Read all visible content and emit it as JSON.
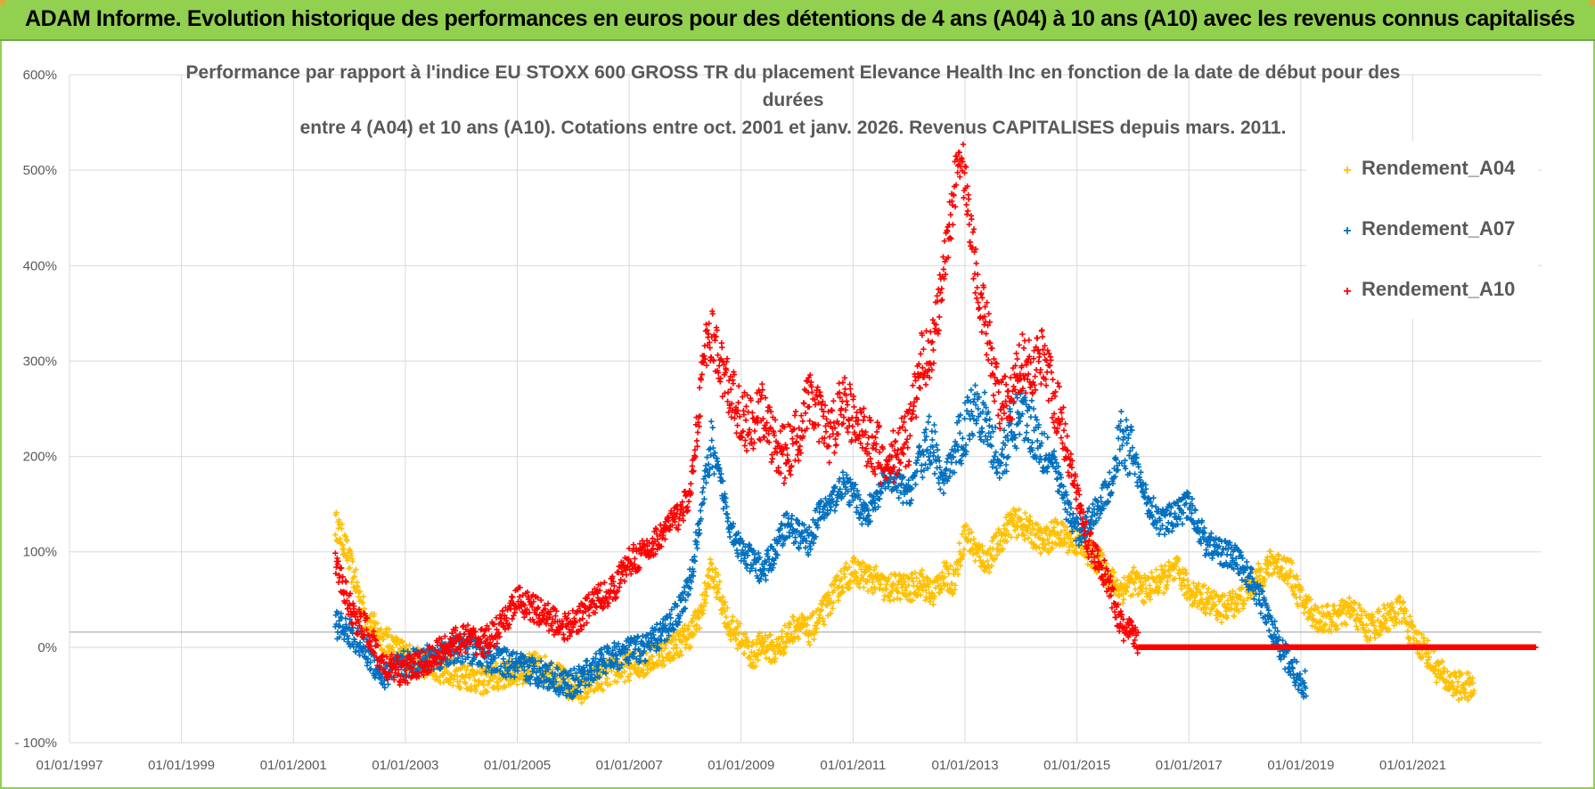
{
  "header": {
    "banner_title": "ADAM Informe. Evolution historique des performances en euros pour des détentions de 4 ans (A04) à 10 ans (A10) avec les revenus connus capitalisés"
  },
  "chart_data": {
    "type": "scatter",
    "title_line1": "Performance par rapport à l'indice EU STOXX 600 GROSS TR  du placement Elevance Health Inc en fonction de la date de début pour des durées",
    "title_line2": "entre 4 (A04) et 10 ans (A10).  Cotations entre oct. 2001 et janv. 2026.  Revenus CAPITALISES  depuis mars. 2011.",
    "xlabel": "",
    "ylabel": "",
    "x_ticks": [
      "01/01/1997",
      "01/01/1999",
      "01/01/2001",
      "01/01/2003",
      "01/01/2005",
      "01/01/2007",
      "01/01/2009",
      "01/01/2011",
      "01/01/2013",
      "01/01/2015",
      "01/01/2017",
      "01/01/2019",
      "01/01/2021"
    ],
    "xlim": [
      1997.0,
      2023.3
    ],
    "y_ticks": [
      "600%",
      "500%",
      "400%",
      "300%",
      "200%",
      "100%",
      "0%",
      "- 100%"
    ],
    "ylim": [
      -100,
      600
    ],
    "legend_position": "top-right",
    "series": [
      {
        "name": "Rendement_A04",
        "color": "#ffc000",
        "points": [
          [
            2001.75,
            130
          ],
          [
            2001.9,
            110
          ],
          [
            2002.1,
            70
          ],
          [
            2002.3,
            30
          ],
          [
            2002.6,
            10
          ],
          [
            2002.9,
            -5
          ],
          [
            2003.2,
            -15
          ],
          [
            2003.5,
            -20
          ],
          [
            2003.8,
            -25
          ],
          [
            2004.1,
            -30
          ],
          [
            2004.4,
            -35
          ],
          [
            2004.7,
            -30
          ],
          [
            2005.0,
            -25
          ],
          [
            2005.3,
            -20
          ],
          [
            2005.6,
            -25
          ],
          [
            2005.9,
            -40
          ],
          [
            2006.1,
            -45
          ],
          [
            2006.4,
            -35
          ],
          [
            2006.7,
            -25
          ],
          [
            2007.0,
            -20
          ],
          [
            2007.3,
            -15
          ],
          [
            2007.6,
            -5
          ],
          [
            2007.9,
            5
          ],
          [
            2008.1,
            15
          ],
          [
            2008.3,
            40
          ],
          [
            2008.45,
            80
          ],
          [
            2008.6,
            60
          ],
          [
            2008.8,
            20
          ],
          [
            2009.0,
            10
          ],
          [
            2009.2,
            -10
          ],
          [
            2009.4,
            5
          ],
          [
            2009.6,
            -5
          ],
          [
            2009.8,
            10
          ],
          [
            2010.0,
            25
          ],
          [
            2010.2,
            15
          ],
          [
            2010.4,
            30
          ],
          [
            2010.6,
            50
          ],
          [
            2010.8,
            70
          ],
          [
            2011.0,
            80
          ],
          [
            2011.2,
            75
          ],
          [
            2011.4,
            70
          ],
          [
            2011.6,
            60
          ],
          [
            2011.8,
            65
          ],
          [
            2012.0,
            60
          ],
          [
            2012.2,
            70
          ],
          [
            2012.4,
            55
          ],
          [
            2012.6,
            75
          ],
          [
            2012.8,
            70
          ],
          [
            2013.0,
            120
          ],
          [
            2013.2,
            100
          ],
          [
            2013.4,
            90
          ],
          [
            2013.6,
            110
          ],
          [
            2013.8,
            130
          ],
          [
            2014.0,
            130
          ],
          [
            2014.2,
            120
          ],
          [
            2014.4,
            110
          ],
          [
            2014.6,
            120
          ],
          [
            2014.8,
            115
          ],
          [
            2015.0,
            110
          ],
          [
            2015.2,
            100
          ],
          [
            2015.4,
            90
          ],
          [
            2015.6,
            70
          ],
          [
            2015.8,
            60
          ],
          [
            2016.0,
            70
          ],
          [
            2016.2,
            60
          ],
          [
            2016.5,
            70
          ],
          [
            2016.8,
            80
          ],
          [
            2017.0,
            60
          ],
          [
            2017.3,
            50
          ],
          [
            2017.6,
            40
          ],
          [
            2017.9,
            50
          ],
          [
            2018.2,
            70
          ],
          [
            2018.5,
            90
          ],
          [
            2018.8,
            80
          ],
          [
            2019.0,
            50
          ],
          [
            2019.3,
            30
          ],
          [
            2019.6,
            30
          ],
          [
            2019.9,
            40
          ],
          [
            2020.2,
            20
          ],
          [
            2020.5,
            30
          ],
          [
            2020.8,
            40
          ],
          [
            2021.0,
            10
          ],
          [
            2021.2,
            0
          ],
          [
            2021.4,
            -20
          ],
          [
            2021.6,
            -35
          ],
          [
            2021.8,
            -40
          ],
          [
            2022.0,
            -42
          ],
          [
            2022.1,
            -43
          ]
        ]
      },
      {
        "name": "Rendement_A07",
        "color": "#0070c0",
        "points": [
          [
            2001.75,
            25
          ],
          [
            2001.9,
            20
          ],
          [
            2002.1,
            10
          ],
          [
            2002.3,
            -5
          ],
          [
            2002.6,
            -30
          ],
          [
            2002.9,
            -20
          ],
          [
            2003.2,
            -15
          ],
          [
            2003.5,
            -10
          ],
          [
            2003.8,
            -5
          ],
          [
            2004.1,
            0
          ],
          [
            2004.4,
            -10
          ],
          [
            2004.7,
            -15
          ],
          [
            2005.0,
            -20
          ],
          [
            2005.3,
            -25
          ],
          [
            2005.6,
            -30
          ],
          [
            2005.9,
            -40
          ],
          [
            2006.1,
            -35
          ],
          [
            2006.4,
            -20
          ],
          [
            2006.7,
            -10
          ],
          [
            2007.0,
            -5
          ],
          [
            2007.3,
            0
          ],
          [
            2007.6,
            15
          ],
          [
            2007.9,
            40
          ],
          [
            2008.1,
            70
          ],
          [
            2008.3,
            150
          ],
          [
            2008.45,
            210
          ],
          [
            2008.6,
            180
          ],
          [
            2008.8,
            130
          ],
          [
            2009.0,
            100
          ],
          [
            2009.2,
            90
          ],
          [
            2009.4,
            80
          ],
          [
            2009.6,
            100
          ],
          [
            2009.8,
            130
          ],
          [
            2010.0,
            120
          ],
          [
            2010.2,
            110
          ],
          [
            2010.4,
            140
          ],
          [
            2010.6,
            150
          ],
          [
            2010.8,
            170
          ],
          [
            2011.0,
            160
          ],
          [
            2011.2,
            140
          ],
          [
            2011.4,
            150
          ],
          [
            2011.6,
            180
          ],
          [
            2011.8,
            170
          ],
          [
            2012.0,
            160
          ],
          [
            2012.2,
            200
          ],
          [
            2012.4,
            220
          ],
          [
            2012.6,
            170
          ],
          [
            2012.8,
            200
          ],
          [
            2013.0,
            230
          ],
          [
            2013.2,
            260
          ],
          [
            2013.4,
            230
          ],
          [
            2013.6,
            190
          ],
          [
            2013.8,
            220
          ],
          [
            2014.0,
            250
          ],
          [
            2014.2,
            230
          ],
          [
            2014.4,
            210
          ],
          [
            2014.6,
            190
          ],
          [
            2014.8,
            150
          ],
          [
            2015.0,
            120
          ],
          [
            2015.2,
            130
          ],
          [
            2015.4,
            150
          ],
          [
            2015.6,
            170
          ],
          [
            2015.8,
            220
          ],
          [
            2016.0,
            200
          ],
          [
            2016.2,
            160
          ],
          [
            2016.5,
            130
          ],
          [
            2016.8,
            140
          ],
          [
            2017.0,
            150
          ],
          [
            2017.3,
            110
          ],
          [
            2017.6,
            100
          ],
          [
            2017.9,
            90
          ],
          [
            2018.2,
            60
          ],
          [
            2018.5,
            20
          ],
          [
            2018.8,
            -20
          ],
          [
            2019.0,
            -35
          ],
          [
            2019.1,
            -40
          ]
        ]
      },
      {
        "name": "Rendement_A10",
        "color": "#ff0000",
        "points": [
          [
            2001.75,
            90
          ],
          [
            2001.9,
            60
          ],
          [
            2002.1,
            30
          ],
          [
            2002.3,
            20
          ],
          [
            2002.6,
            -20
          ],
          [
            2002.9,
            -25
          ],
          [
            2003.2,
            -20
          ],
          [
            2003.5,
            -10
          ],
          [
            2003.8,
            5
          ],
          [
            2004.1,
            10
          ],
          [
            2004.4,
            5
          ],
          [
            2004.7,
            20
          ],
          [
            2005.0,
            50
          ],
          [
            2005.3,
            40
          ],
          [
            2005.6,
            30
          ],
          [
            2005.9,
            20
          ],
          [
            2006.1,
            30
          ],
          [
            2006.4,
            50
          ],
          [
            2006.7,
            60
          ],
          [
            2007.0,
            90
          ],
          [
            2007.3,
            100
          ],
          [
            2007.6,
            120
          ],
          [
            2007.9,
            140
          ],
          [
            2008.1,
            160
          ],
          [
            2008.3,
            290
          ],
          [
            2008.45,
            330
          ],
          [
            2008.6,
            300
          ],
          [
            2008.8,
            270
          ],
          [
            2009.0,
            240
          ],
          [
            2009.2,
            230
          ],
          [
            2009.4,
            250
          ],
          [
            2009.6,
            210
          ],
          [
            2009.8,
            200
          ],
          [
            2010.0,
            220
          ],
          [
            2010.2,
            260
          ],
          [
            2010.4,
            240
          ],
          [
            2010.6,
            220
          ],
          [
            2010.8,
            260
          ],
          [
            2011.0,
            240
          ],
          [
            2011.2,
            220
          ],
          [
            2011.4,
            210
          ],
          [
            2011.6,
            190
          ],
          [
            2011.8,
            210
          ],
          [
            2012.0,
            220
          ],
          [
            2012.2,
            300
          ],
          [
            2012.4,
            310
          ],
          [
            2012.6,
            380
          ],
          [
            2012.8,
            480
          ],
          [
            2012.9,
            520
          ],
          [
            2013.0,
            490
          ],
          [
            2013.2,
            390
          ],
          [
            2013.4,
            330
          ],
          [
            2013.6,
            260
          ],
          [
            2013.8,
            250
          ],
          [
            2014.0,
            300
          ],
          [
            2014.2,
            290
          ],
          [
            2014.4,
            310
          ],
          [
            2014.6,
            260
          ],
          [
            2014.8,
            220
          ],
          [
            2015.0,
            160
          ],
          [
            2015.2,
            110
          ],
          [
            2015.4,
            90
          ],
          [
            2015.6,
            60
          ],
          [
            2015.8,
            20
          ],
          [
            2016.0,
            15
          ],
          [
            2016.1,
            0
          ],
          [
            2016.5,
            0
          ],
          [
            2017.0,
            0
          ],
          [
            2017.5,
            0
          ],
          [
            2018.0,
            0
          ],
          [
            2018.5,
            0
          ],
          [
            2019.0,
            0
          ],
          [
            2019.5,
            0
          ],
          [
            2020.0,
            0
          ],
          [
            2020.5,
            0
          ],
          [
            2021.0,
            0
          ],
          [
            2021.5,
            0
          ],
          [
            2022.0,
            0
          ],
          [
            2022.5,
            0
          ],
          [
            2023.0,
            0
          ],
          [
            2023.2,
            0
          ]
        ]
      }
    ]
  }
}
